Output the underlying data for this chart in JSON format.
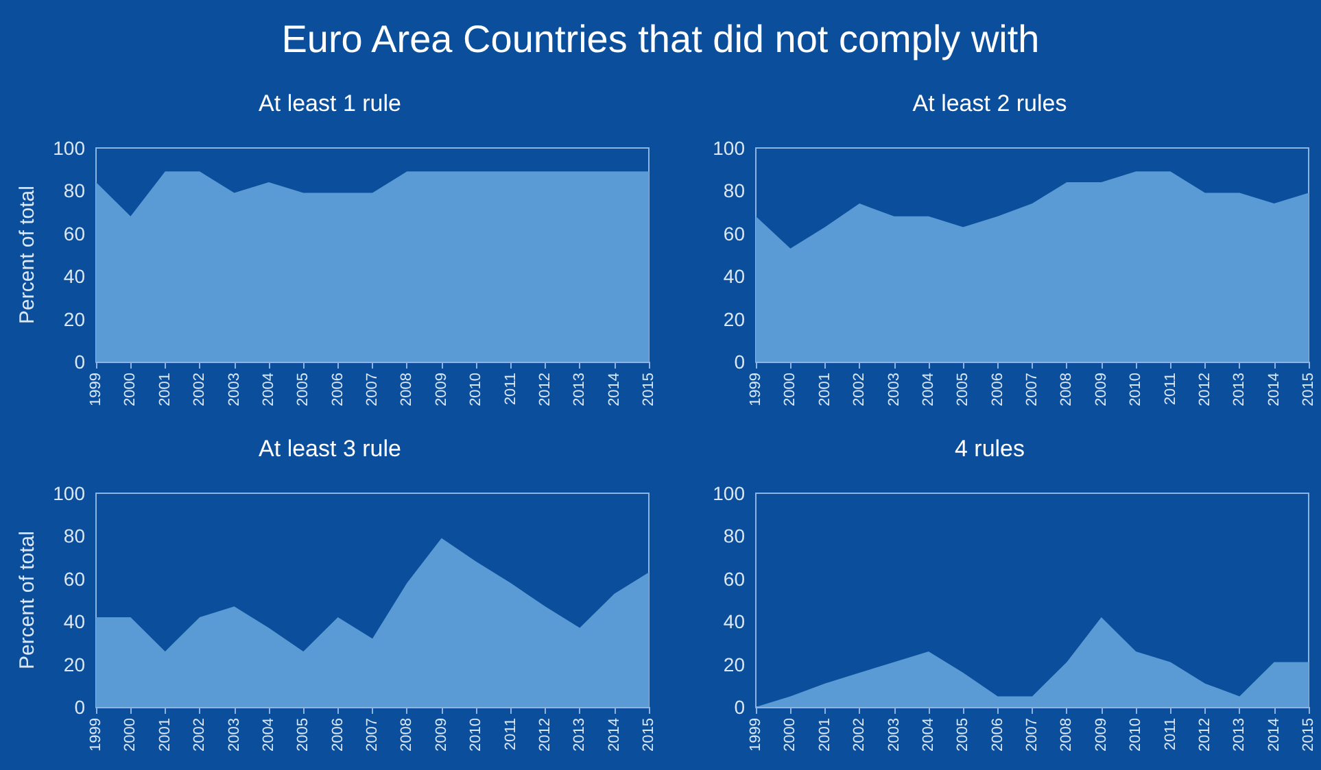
{
  "chart_data": [
    {
      "type": "area",
      "title": "At least 1 rule",
      "ylabel": "Percent of total",
      "annotations": [
        "Euro Area Countries that did not comply with"
      ],
      "categories": [
        "1999",
        "2000",
        "2001",
        "2002",
        "2003",
        "2004",
        "2005",
        "2006",
        "2007",
        "2008",
        "2009",
        "2010",
        "2011",
        "2012",
        "2013",
        "2014",
        "2015"
      ],
      "color": "#5b9bd5",
      "values": [
        84,
        68,
        89,
        89,
        79,
        84,
        79,
        79,
        79,
        89,
        89,
        89,
        89,
        89,
        89,
        89,
        89
      ],
      "ylim": [
        0,
        100
      ],
      "yticks": [
        0,
        20,
        40,
        60,
        80,
        100
      ],
      "grid": false
    },
    {
      "type": "area",
      "title": "At least 2 rules",
      "categories": [
        "1999",
        "2000",
        "2001",
        "2002",
        "2003",
        "2004",
        "2005",
        "2006",
        "2007",
        "2008",
        "2009",
        "2010",
        "2011",
        "2012",
        "2013",
        "2014",
        "2015"
      ],
      "color": "#5b9bd5",
      "values": [
        68,
        53,
        63,
        74,
        68,
        68,
        63,
        68,
        74,
        84,
        84,
        89,
        89,
        79,
        79,
        74,
        79
      ],
      "ylim": [
        0,
        100
      ],
      "yticks": [
        0,
        20,
        40,
        60,
        80,
        100
      ],
      "grid": false
    },
    {
      "type": "area",
      "title": "At least 3 rule",
      "ylabel": "Percent of total",
      "categories": [
        "1999",
        "2000",
        "2001",
        "2002",
        "2003",
        "2004",
        "2005",
        "2006",
        "2007",
        "2008",
        "2009",
        "2010",
        "2011",
        "2012",
        "2013",
        "2014",
        "2015"
      ],
      "color": "#5b9bd5",
      "values": [
        42,
        42,
        26,
        42,
        47,
        37,
        26,
        42,
        32,
        58,
        79,
        68,
        58,
        47,
        37,
        53,
        63
      ],
      "ylim": [
        0,
        100
      ],
      "yticks": [
        0,
        20,
        40,
        60,
        80,
        100
      ],
      "grid": false
    },
    {
      "type": "area",
      "title": "4 rules",
      "categories": [
        "1999",
        "2000",
        "2001",
        "2002",
        "2003",
        "2004",
        "2005",
        "2006",
        "2007",
        "2008",
        "2009",
        "2010",
        "2011",
        "2012",
        "2013",
        "2014",
        "2015"
      ],
      "color": "#5b9bd5",
      "values": [
        0,
        5,
        11,
        16,
        21,
        26,
        16,
        5,
        5,
        21,
        42,
        26,
        21,
        11,
        5,
        21,
        21
      ],
      "ylim": [
        0,
        100
      ],
      "yticks": [
        0,
        20,
        40,
        60,
        80,
        100
      ],
      "grid": false
    }
  ]
}
